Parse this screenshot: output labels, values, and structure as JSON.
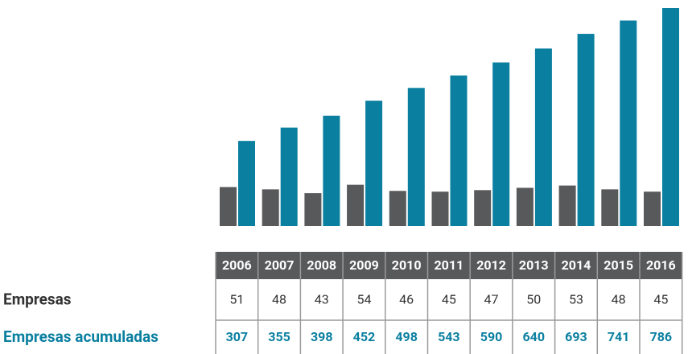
{
  "chart_data": {
    "type": "bar",
    "categories": [
      "2006",
      "2007",
      "2008",
      "2009",
      "2010",
      "2011",
      "2012",
      "2013",
      "2014",
      "2015",
      "2016"
    ],
    "series": [
      {
        "name": "Empresas",
        "color": "#58595b",
        "values": [
          51,
          48,
          43,
          54,
          46,
          45,
          47,
          50,
          53,
          48,
          45
        ]
      },
      {
        "name": "Empresas acumuladas",
        "color": "#0a7fa0",
        "axis": "y2",
        "values": [
          307,
          355,
          398,
          452,
          498,
          543,
          590,
          640,
          693,
          741,
          786
        ]
      }
    ],
    "ylim": [
      0,
      285
    ],
    "y2lim": [
      0,
      786
    ]
  }
}
